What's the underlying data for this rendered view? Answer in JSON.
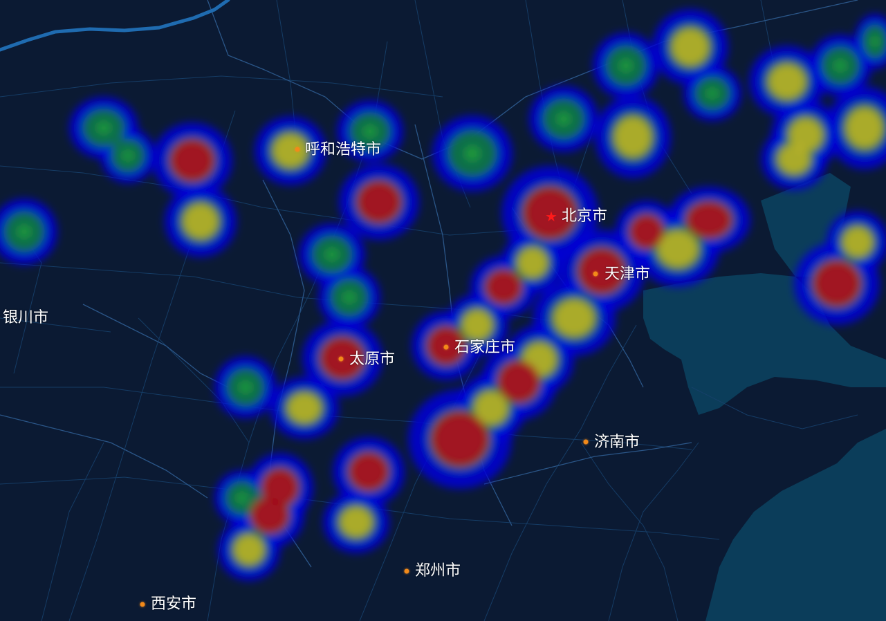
{
  "map": {
    "colors": {
      "land": "#0b1a33",
      "sea": "#0b3d5a",
      "road": "#17406b",
      "border": "#2b5688",
      "river": "#1f6bb0",
      "label": "#ffffff",
      "city_dot": "#f28a1a",
      "capital_star": "#ff1a1a"
    },
    "heatmap_gradient": [
      "#0000d8",
      "#0a7a3c",
      "#b8b028",
      "#a01020"
    ],
    "capital_icon": "star-icon",
    "city_icon": "dot-icon"
  },
  "cities": {
    "beijing": "北京市",
    "tianjin": "天津市",
    "shijiazhuang": "石家庄市",
    "taiyuan": "太原市",
    "hohhot": "呼和浩特市",
    "jinan": "济南市",
    "zhengzhou": "郑州市",
    "xian": "西安市",
    "yinchuan": "银川市"
  }
}
